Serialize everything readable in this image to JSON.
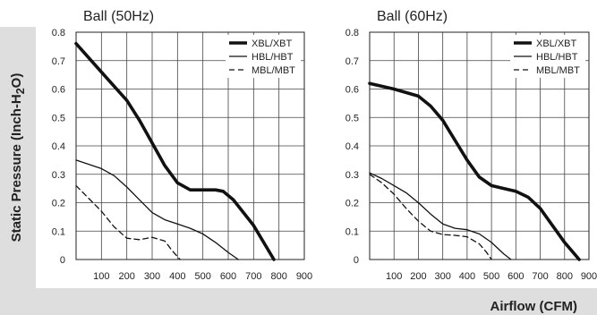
{
  "figure": {
    "ylabel_prefix": "Static Pressure (Inch-H",
    "ylabel_sub": "2",
    "ylabel_suffix": "O)",
    "xlabel": "Airflow (CFM)"
  },
  "chart_data": [
    {
      "type": "line",
      "title": "Ball (50Hz)",
      "xlabel": "Airflow (CFM)",
      "ylabel": "Static Pressure (Inch-H2O)",
      "xlim": [
        0,
        900
      ],
      "ylim": [
        0,
        0.8
      ],
      "xticks": [
        100,
        200,
        300,
        400,
        500,
        600,
        700,
        800,
        900
      ],
      "yticks": [
        0,
        0.1,
        0.2,
        0.3,
        0.4,
        0.5,
        0.6,
        0.7,
        0.8
      ],
      "grid": true,
      "legend_position": "top-right",
      "series": [
        {
          "name": "XBL/XBT",
          "style": "thick",
          "x": [
            0,
            100,
            200,
            250,
            300,
            350,
            400,
            450,
            500,
            550,
            580,
            620,
            700,
            780
          ],
          "y": [
            0.76,
            0.66,
            0.56,
            0.49,
            0.41,
            0.33,
            0.27,
            0.245,
            0.245,
            0.245,
            0.24,
            0.21,
            0.12,
            0
          ]
        },
        {
          "name": "HBL/HBT",
          "style": "thin",
          "x": [
            0,
            100,
            150,
            200,
            250,
            300,
            350,
            400,
            450,
            500,
            550,
            600,
            640
          ],
          "y": [
            0.35,
            0.32,
            0.295,
            0.255,
            0.21,
            0.165,
            0.14,
            0.125,
            0.11,
            0.09,
            0.06,
            0.025,
            0
          ]
        },
        {
          "name": "MBL/MBT",
          "style": "dashed",
          "x": [
            0,
            100,
            150,
            200,
            250,
            300,
            350,
            380,
            410
          ],
          "y": [
            0.26,
            0.17,
            0.115,
            0.075,
            0.07,
            0.078,
            0.065,
            0.03,
            0
          ]
        }
      ]
    },
    {
      "type": "line",
      "title": "Ball (60Hz)",
      "xlabel": "Airflow (CFM)",
      "ylabel": "Static Pressure (Inch-H2O)",
      "xlim": [
        0,
        900
      ],
      "ylim": [
        0,
        0.8
      ],
      "xticks": [
        100,
        200,
        300,
        400,
        500,
        600,
        700,
        800,
        900
      ],
      "yticks": [
        0,
        0.1,
        0.2,
        0.3,
        0.4,
        0.5,
        0.6,
        0.7,
        0.8
      ],
      "grid": true,
      "legend_position": "top-right",
      "series": [
        {
          "name": "XBL/XBT",
          "style": "thick",
          "x": [
            0,
            100,
            200,
            250,
            300,
            350,
            400,
            450,
            500,
            550,
            600,
            650,
            700,
            750,
            800,
            860
          ],
          "y": [
            0.62,
            0.6,
            0.575,
            0.54,
            0.49,
            0.42,
            0.35,
            0.29,
            0.26,
            0.25,
            0.24,
            0.22,
            0.18,
            0.12,
            0.06,
            0
          ]
        },
        {
          "name": "HBL/HBT",
          "style": "thin",
          "x": [
            0,
            50,
            100,
            150,
            200,
            250,
            300,
            350,
            400,
            450,
            500,
            550,
            580
          ],
          "y": [
            0.305,
            0.285,
            0.26,
            0.235,
            0.2,
            0.16,
            0.125,
            0.11,
            0.105,
            0.09,
            0.06,
            0.02,
            0
          ]
        },
        {
          "name": "MBL/MBT",
          "style": "dashed",
          "x": [
            0,
            50,
            100,
            150,
            200,
            250,
            300,
            350,
            400,
            450,
            480,
            500
          ],
          "y": [
            0.3,
            0.27,
            0.23,
            0.18,
            0.135,
            0.1,
            0.088,
            0.085,
            0.08,
            0.055,
            0.025,
            0
          ]
        }
      ]
    }
  ]
}
